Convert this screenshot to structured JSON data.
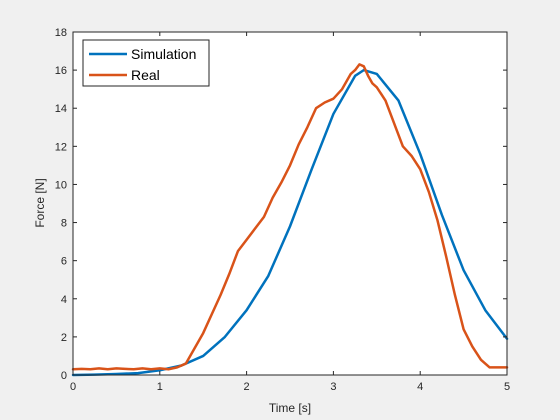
{
  "chart_data": {
    "type": "line",
    "xlabel": "Time [s]",
    "ylabel": "Force [N]",
    "xlim": [
      0,
      5
    ],
    "ylim": [
      0,
      18
    ],
    "xticks": [
      0,
      1,
      2,
      3,
      4,
      5
    ],
    "yticks": [
      0,
      2,
      4,
      6,
      8,
      10,
      12,
      14,
      16,
      18
    ],
    "grid": false,
    "legend_position": "top-left",
    "series": [
      {
        "name": "Simulation",
        "color": "#0072BD",
        "x": [
          0,
          0.25,
          0.5,
          0.75,
          1.0,
          1.25,
          1.5,
          1.75,
          2.0,
          2.25,
          2.5,
          2.75,
          3.0,
          3.25,
          3.35,
          3.5,
          3.75,
          4.0,
          4.25,
          4.5,
          4.75,
          5.0
        ],
        "y": [
          0.0,
          0.02,
          0.05,
          0.1,
          0.25,
          0.5,
          1.0,
          2.0,
          3.4,
          5.2,
          7.8,
          10.8,
          13.7,
          15.7,
          16.0,
          15.8,
          14.4,
          11.6,
          8.4,
          5.5,
          3.4,
          1.9
        ]
      },
      {
        "name": "Real",
        "color": "#D95319",
        "x": [
          0,
          0.1,
          0.2,
          0.3,
          0.4,
          0.5,
          0.6,
          0.7,
          0.8,
          0.9,
          1.0,
          1.1,
          1.2,
          1.3,
          1.4,
          1.5,
          1.6,
          1.7,
          1.8,
          1.9,
          2.0,
          2.1,
          2.2,
          2.3,
          2.4,
          2.5,
          2.6,
          2.7,
          2.8,
          2.9,
          3.0,
          3.1,
          3.2,
          3.25,
          3.3,
          3.35,
          3.4,
          3.45,
          3.5,
          3.6,
          3.7,
          3.8,
          3.9,
          4.0,
          4.1,
          4.2,
          4.3,
          4.4,
          4.5,
          4.6,
          4.7,
          4.8,
          4.9,
          5.0
        ],
        "y": [
          0.3,
          0.32,
          0.3,
          0.35,
          0.3,
          0.35,
          0.32,
          0.3,
          0.35,
          0.3,
          0.35,
          0.3,
          0.4,
          0.6,
          1.4,
          2.2,
          3.2,
          4.2,
          5.3,
          6.5,
          7.1,
          7.7,
          8.3,
          9.3,
          10.1,
          11.0,
          12.1,
          13.0,
          14.0,
          14.3,
          14.5,
          15.0,
          15.8,
          16.0,
          16.3,
          16.2,
          15.7,
          15.3,
          15.1,
          14.4,
          13.2,
          12.0,
          11.5,
          10.8,
          9.6,
          8.1,
          6.2,
          4.2,
          2.4,
          1.5,
          0.8,
          0.4,
          0.4,
          0.4
        ]
      }
    ]
  }
}
